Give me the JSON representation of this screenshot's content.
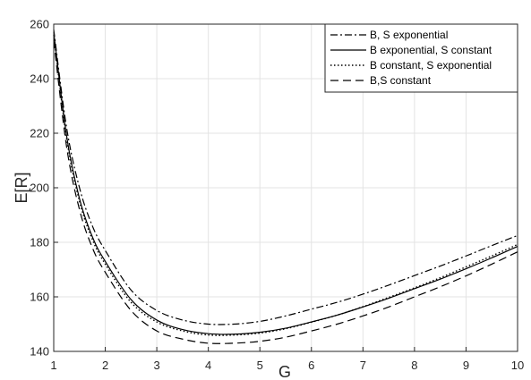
{
  "chart_data": {
    "type": "line",
    "xlabel": "G",
    "ylabel": "E[R]",
    "xlim": [
      1,
      10
    ],
    "ylim": [
      140,
      260
    ],
    "xticks": [
      1,
      2,
      3,
      4,
      5,
      6,
      7,
      8,
      9,
      10
    ],
    "yticks": [
      140,
      160,
      180,
      200,
      220,
      240,
      260
    ],
    "grid": true,
    "legend_position": "top-right",
    "series": [
      {
        "name": "B, S exponential",
        "style": "dashdot",
        "x": [
          1,
          1.25,
          1.5,
          1.75,
          2,
          2.5,
          3,
          3.5,
          4,
          4.5,
          5,
          5.5,
          6,
          6.5,
          7,
          7.5,
          8,
          8.5,
          9,
          9.5,
          10
        ],
        "y": [
          258,
          222,
          200,
          186,
          177,
          162.5,
          155,
          151.5,
          150,
          150,
          151,
          153,
          155.5,
          158,
          161,
          164.3,
          167.8,
          171.3,
          175,
          178.8,
          182.5
        ]
      },
      {
        "name": "B exponential, S constant",
        "style": "solid",
        "x": [
          1,
          1.25,
          1.5,
          1.75,
          2,
          2.5,
          3,
          3.5,
          4,
          4.5,
          5,
          5.5,
          6,
          6.5,
          7,
          7.5,
          8,
          8.5,
          9,
          9.5,
          10
        ],
        "y": [
          257,
          219,
          196,
          182,
          173,
          159,
          151.5,
          148,
          146.5,
          146.3,
          147,
          148.5,
          150.8,
          153.3,
          156.3,
          159.5,
          163,
          166.5,
          170.3,
          174.3,
          178.5
        ]
      },
      {
        "name": "B constant, S exponential",
        "style": "dotted",
        "x": [
          1,
          1.25,
          1.5,
          1.75,
          2,
          2.5,
          3,
          3.5,
          4,
          4.5,
          5,
          5.5,
          6,
          6.5,
          7,
          7.5,
          8,
          8.5,
          9,
          9.5,
          10
        ],
        "y": [
          256,
          218,
          195,
          181,
          172,
          158,
          150.8,
          147.5,
          146,
          146,
          146.7,
          148.3,
          150.7,
          153.3,
          156.4,
          159.8,
          163.3,
          167,
          171,
          175,
          179.2
        ]
      },
      {
        "name": "B,S constant",
        "style": "dashed",
        "x": [
          1,
          1.25,
          1.5,
          1.75,
          2,
          2.5,
          3,
          3.5,
          4,
          4.5,
          5,
          5.5,
          6,
          6.5,
          7,
          7.5,
          8,
          8.5,
          9,
          9.5,
          10
        ],
        "y": [
          254,
          215,
          192,
          178,
          169,
          155,
          147.5,
          144.5,
          143,
          143,
          143.7,
          145.2,
          147.5,
          150,
          153,
          156.3,
          160,
          163.7,
          167.7,
          172,
          176.5
        ]
      }
    ]
  }
}
